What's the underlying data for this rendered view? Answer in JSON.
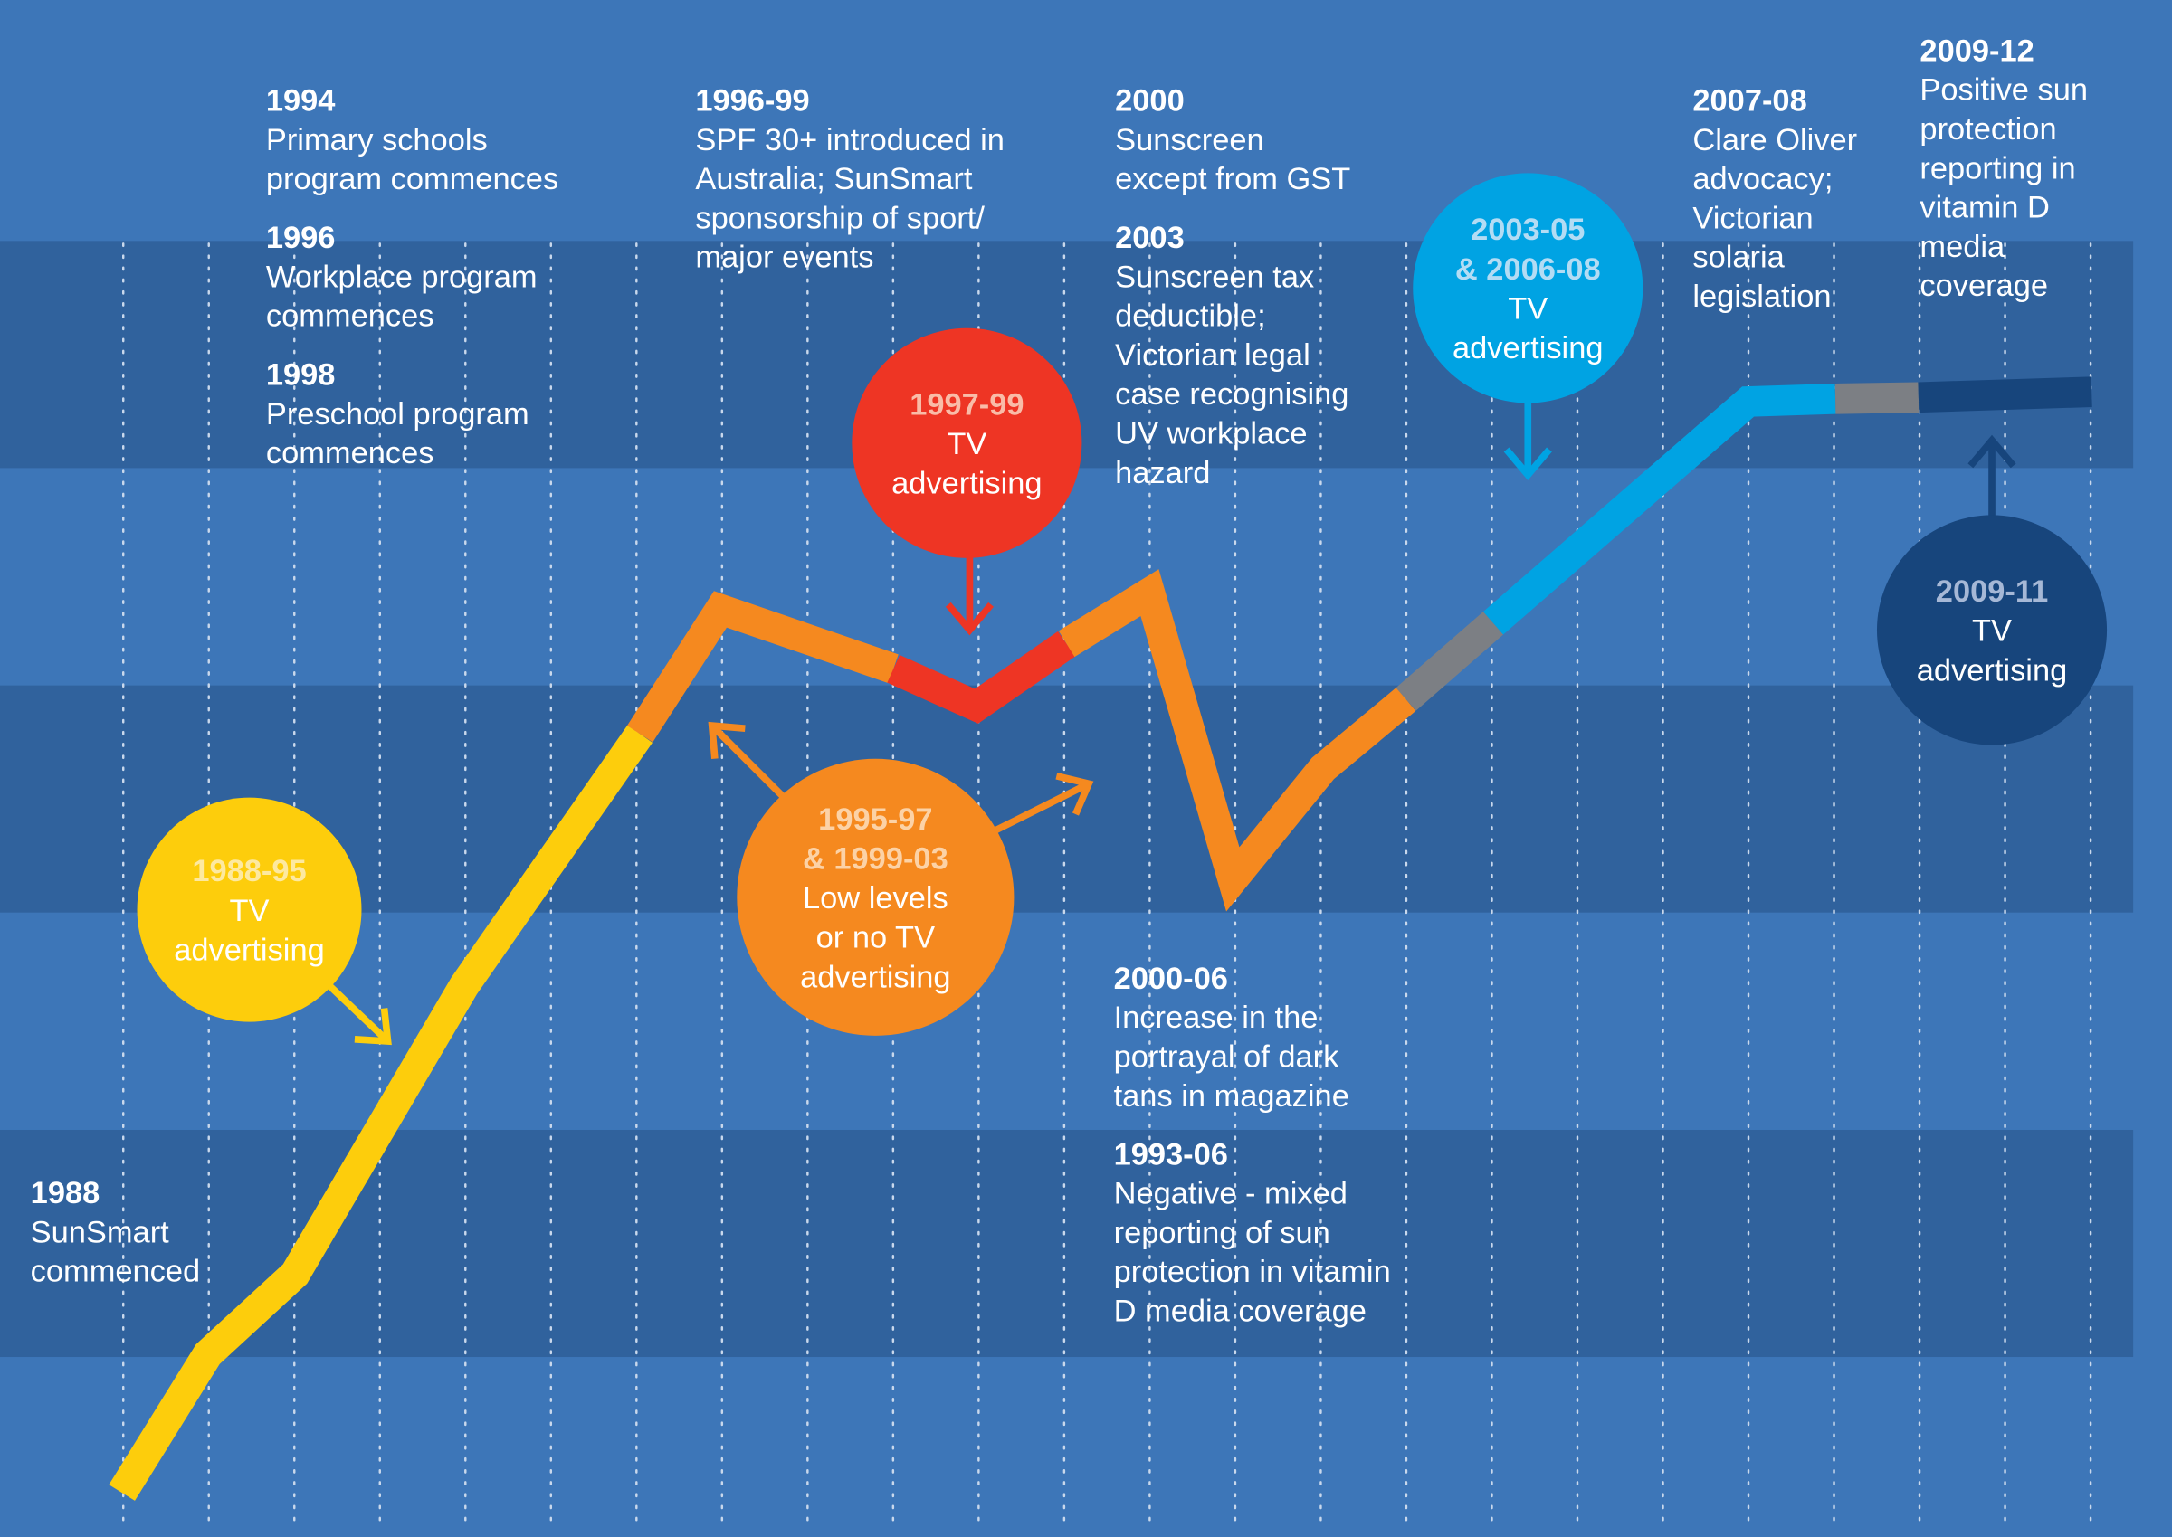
{
  "colors": {
    "background_light": "#3d76b8",
    "background_dark": "#30629d",
    "yellow": "#fdcd0c",
    "orange": "#f5891f",
    "red": "#ee3524",
    "gray": "#7c7f84",
    "light_blue": "#00a3e3",
    "navy": "#17457c"
  },
  "events": [
    {
      "year": "1994",
      "lines": [
        "Primary schools",
        "program commences"
      ]
    },
    {
      "year": "1996",
      "lines": [
        "Workplace program",
        "commences"
      ]
    },
    {
      "year": "1998",
      "lines": [
        "Preschool program",
        "commences"
      ]
    },
    {
      "year": "1996-99",
      "lines": [
        "SPF 30+ introduced in",
        "Australia; SunSmart",
        "sponsorship of sport/",
        "major events"
      ]
    },
    {
      "year": "2000",
      "lines": [
        "Sunscreen",
        "except from GST"
      ]
    },
    {
      "year": "2003",
      "lines": [
        "Sunscreen tax",
        "deductible;",
        "Victorian legal",
        "case recognising",
        "UV workplace",
        "hazard"
      ]
    },
    {
      "year": "2007-08",
      "lines": [
        "Clare Oliver",
        "advocacy;",
        "Victorian",
        "solaria",
        "legislation"
      ]
    },
    {
      "year": "2009-12",
      "lines": [
        "Positive sun",
        "protection",
        "reporting in",
        "vitamin D",
        "media",
        "coverage"
      ]
    },
    {
      "year": "2000-06",
      "lines": [
        "Increase in the",
        "portrayal of dark",
        "tans in magazine"
      ]
    },
    {
      "year": "1993-06",
      "lines": [
        "Negative - mixed",
        "reporting of sun",
        "protection in vitamin",
        "D media coverage"
      ]
    },
    {
      "year": "1988",
      "lines": [
        "SunSmart",
        "commenced"
      ]
    }
  ],
  "bubbles": [
    {
      "name": "1988-95-tv",
      "color": "yellow",
      "year": "1988-95",
      "year_color": "#fde9a0",
      "lines": [
        "TV",
        "advertising"
      ]
    },
    {
      "name": "1995-97-low-tv",
      "color": "orange",
      "year": "1995-97",
      "year2": "& 1999-03",
      "year_color": "#fcd2a6",
      "lines": [
        "Low levels",
        "or no TV",
        "advertising"
      ]
    },
    {
      "name": "1997-99-tv",
      "color": "red",
      "year": "1997-99",
      "year_color": "#f9bca8",
      "lines": [
        "TV",
        "advertising"
      ]
    },
    {
      "name": "2003-05-tv",
      "color": "light_blue",
      "year": "2003-05",
      "year2": "& 2006-08",
      "year_color": "#b3dcf4",
      "lines": [
        "TV",
        "advertising"
      ]
    },
    {
      "name": "2009-11-tv",
      "color": "navy",
      "year": "2009-11",
      "year_color": "#a6b8d6",
      "lines": [
        "TV",
        "advertising"
      ]
    }
  ],
  "trend_segments": [
    "yellow",
    "orange",
    "red",
    "orange",
    "gray",
    "light_blue",
    "gray",
    "navy"
  ]
}
